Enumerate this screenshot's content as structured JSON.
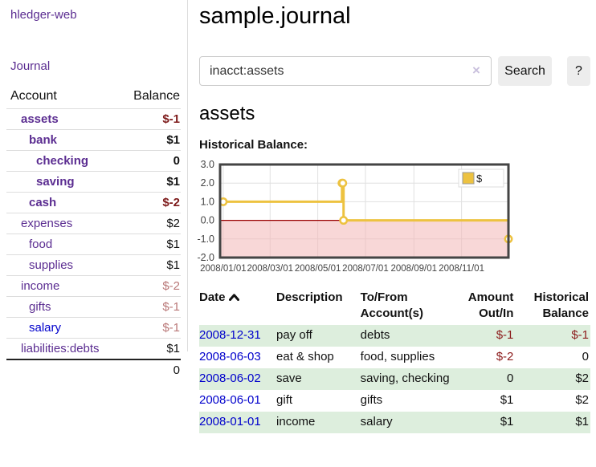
{
  "app": {
    "brand": "hledger-web"
  },
  "nav": {
    "journal": "Journal"
  },
  "sidebar": {
    "header": {
      "account": "Account",
      "balance": "Balance"
    },
    "rows": [
      {
        "name": "assets",
        "balance": "$-1",
        "indent": 1,
        "bold": true,
        "neg": "strong"
      },
      {
        "name": "bank",
        "balance": "$1",
        "indent": 2,
        "bold": true,
        "neg": ""
      },
      {
        "name": "checking",
        "balance": "0",
        "indent": 3,
        "bold": true,
        "neg": ""
      },
      {
        "name": "saving",
        "balance": "$1",
        "indent": 3,
        "bold": true,
        "neg": ""
      },
      {
        "name": "cash",
        "balance": "$-2",
        "indent": 2,
        "bold": true,
        "neg": "strong"
      },
      {
        "name": "expenses",
        "balance": "$2",
        "indent": 1,
        "bold": false,
        "neg": ""
      },
      {
        "name": "food",
        "balance": "$1",
        "indent": 2,
        "bold": false,
        "neg": ""
      },
      {
        "name": "supplies",
        "balance": "$1",
        "indent": 2,
        "bold": false,
        "neg": ""
      },
      {
        "name": "income",
        "balance": "$-2",
        "indent": 1,
        "bold": false,
        "neg": "soft"
      },
      {
        "name": "gifts",
        "balance": "$-1",
        "indent": 2,
        "bold": false,
        "neg": "soft"
      },
      {
        "name": "salary",
        "balance": "$-1",
        "indent": 2,
        "bold": false,
        "neg": "soft",
        "blue": true
      },
      {
        "name": "liabilities:debts",
        "balance": "$1",
        "indent": 1,
        "bold": false,
        "neg": ""
      }
    ],
    "total": "0"
  },
  "main": {
    "title": "sample.journal",
    "search": {
      "value": "inacct:assets",
      "clear_icon": "×",
      "button": "Search",
      "help_button": "?"
    },
    "account_heading": "assets",
    "chart_label": "Historical Balance:"
  },
  "chart_data": {
    "type": "line",
    "title": "Historical Balance",
    "step": true,
    "series": [
      {
        "name": "$",
        "color": "#edc240",
        "points": [
          [
            "2008-01-01",
            1
          ],
          [
            "2008-06-01",
            2
          ],
          [
            "2008-06-02",
            2
          ],
          [
            "2008-06-03",
            0
          ],
          [
            "2008-12-31",
            -1
          ]
        ]
      }
    ],
    "xlim": [
      "2007-12-28",
      "2008-12-31"
    ],
    "ylim": [
      -2,
      3
    ],
    "y_ticks": [
      "3.0",
      "2.0",
      "1.0",
      "0.0",
      "-1.0",
      "-2.0"
    ],
    "y_tick_values": [
      3,
      2,
      1,
      0,
      -1,
      -2
    ],
    "x_ticks": [
      "2008/01/01",
      "2008/03/01",
      "2008/05/01",
      "2008/07/01",
      "2008/09/01",
      "2008/11/01"
    ],
    "legend": "$",
    "legend_position": "top-right",
    "grid": true,
    "negative_region_color": "#f2b6b6",
    "zero_line_color": "#990000",
    "border_color": "#444444"
  },
  "table": {
    "headers": {
      "date": "Date",
      "description": "Description",
      "accounts": "To/From Account(s)",
      "amount": "Amount Out/In",
      "balance": "Historical Balance"
    },
    "rows": [
      {
        "date": "2008-12-31",
        "description": "pay off",
        "accounts": "debts",
        "amount": "$-1",
        "balance": "$-1",
        "amount_neg": true,
        "balance_neg": true
      },
      {
        "date": "2008-06-03",
        "description": "eat & shop",
        "accounts": "food, supplies",
        "amount": "$-2",
        "balance": "0",
        "amount_neg": true,
        "balance_neg": false
      },
      {
        "date": "2008-06-02",
        "description": "save",
        "accounts": "saving, checking",
        "amount": "0",
        "balance": "$2",
        "amount_neg": false,
        "balance_neg": false
      },
      {
        "date": "2008-06-01",
        "description": "gift",
        "accounts": "gifts",
        "amount": "$1",
        "balance": "$2",
        "amount_neg": false,
        "balance_neg": false
      },
      {
        "date": "2008-01-01",
        "description": "income",
        "accounts": "salary",
        "amount": "$1",
        "balance": "$1",
        "amount_neg": false,
        "balance_neg": false
      }
    ]
  },
  "colors": {
    "accent_purple": "#5b2d91",
    "link_blue": "#0000cc",
    "negative_strong": "#7d1a1a",
    "negative_soft": "#b97777",
    "stripe_green": "#ddeedd",
    "series_gold": "#edc240"
  }
}
